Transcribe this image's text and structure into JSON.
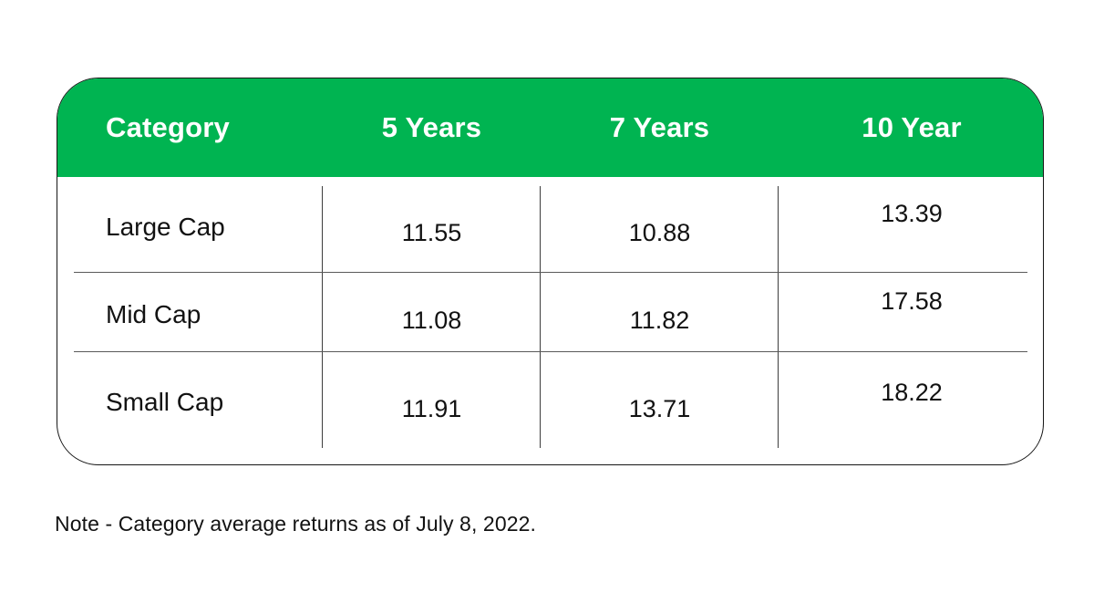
{
  "chart_data": {
    "type": "table",
    "title": "Category average returns",
    "columns": [
      "Category",
      "5 Years",
      "7 Years",
      "10 Year"
    ],
    "rows": [
      [
        "Large Cap",
        "11.55",
        "10.88",
        "13.39"
      ],
      [
        "Mid Cap",
        "11.08",
        "11.82",
        "17.58"
      ],
      [
        "Small Cap",
        "11.91",
        "13.71",
        "18.22"
      ]
    ],
    "note": "Note - Category average returns as of July 8, 2022."
  },
  "colors": {
    "header_bg": "#00b451",
    "header_text": "#ffffff",
    "body_text": "#121212",
    "divider": "#4a4a4a",
    "card_border": "#161616"
  }
}
